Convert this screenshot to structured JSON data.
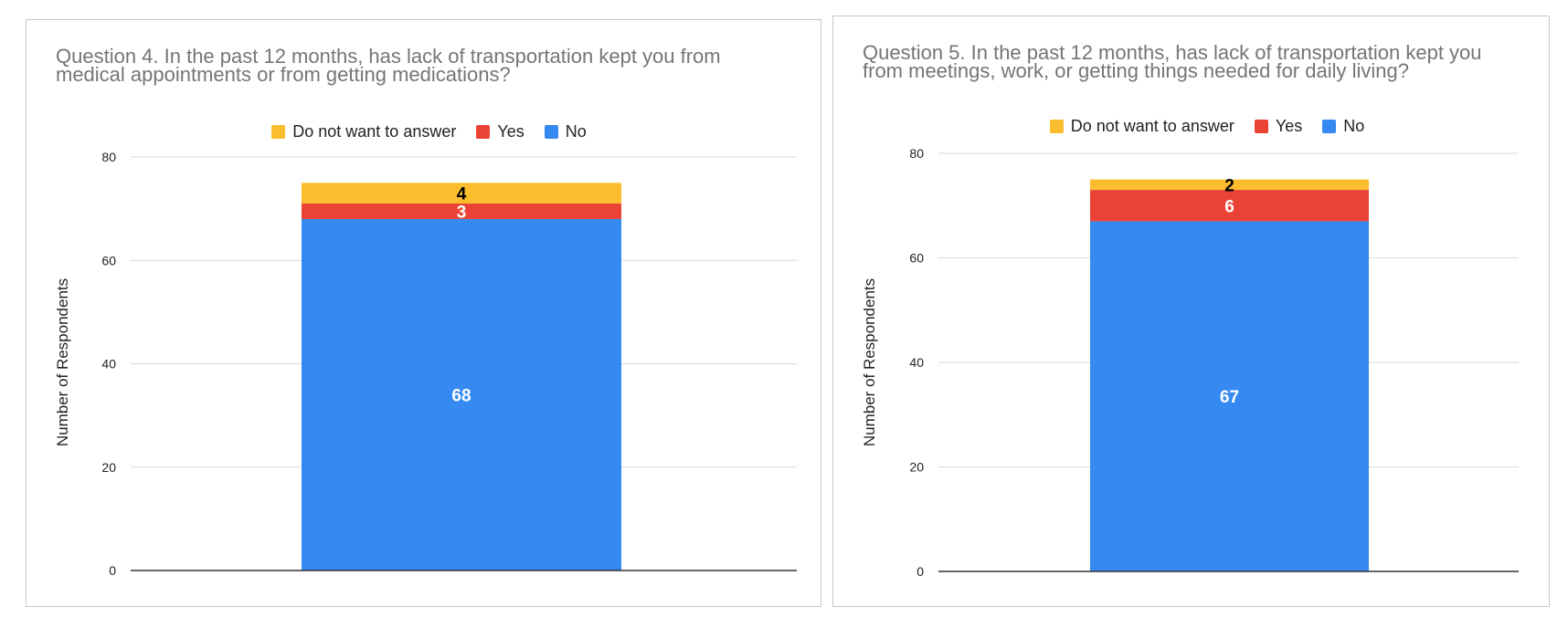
{
  "colors": {
    "no": "#3589f0",
    "yes": "#ea4335",
    "do_not_want": "#fbbc2d",
    "grid": "#d9d9d9",
    "axis": "#333333",
    "title": "#757575"
  },
  "chart_data": [
    {
      "type": "bar",
      "stacked": true,
      "title": "Question 4. In the past 12 months, has lack of transportation kept you from medical appointments or from getting medications?",
      "xlabel": "",
      "ylabel": "Number of Respondents",
      "ylim": [
        0,
        80
      ],
      "yticks": [
        "0",
        "20",
        "40",
        "60",
        "80"
      ],
      "grid": true,
      "legend_position": "top",
      "legend": [
        "Do not want to answer",
        "Yes",
        "No"
      ],
      "categories": [
        ""
      ],
      "series": [
        {
          "name": "No",
          "values": [
            68
          ],
          "labels": [
            "68"
          ]
        },
        {
          "name": "Yes",
          "values": [
            3
          ],
          "labels": [
            "3"
          ]
        },
        {
          "name": "Do not want to answer",
          "values": [
            4
          ],
          "labels": [
            "4"
          ]
        }
      ]
    },
    {
      "type": "bar",
      "stacked": true,
      "title": "Question 5. In the past 12 months, has lack of transportation kept you from meetings, work, or getting things needed for daily living?",
      "xlabel": "",
      "ylabel": "Number of Respondents",
      "ylim": [
        0,
        80
      ],
      "yticks": [
        "0",
        "20",
        "40",
        "60",
        "80"
      ],
      "grid": true,
      "legend_position": "top",
      "legend": [
        "Do not want to answer",
        "Yes",
        "No"
      ],
      "categories": [
        ""
      ],
      "series": [
        {
          "name": "No",
          "values": [
            67
          ],
          "labels": [
            "67"
          ]
        },
        {
          "name": "Yes",
          "values": [
            6
          ],
          "labels": [
            "6"
          ]
        },
        {
          "name": "Do not want to answer",
          "values": [
            2
          ],
          "labels": [
            "2"
          ]
        }
      ]
    }
  ]
}
